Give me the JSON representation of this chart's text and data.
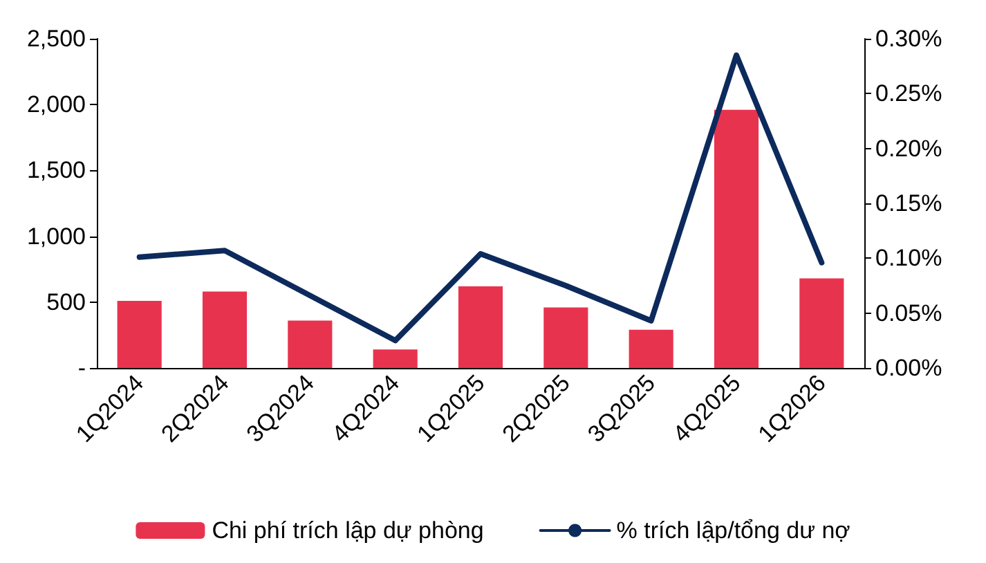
{
  "chart_data": {
    "type": "bar",
    "categories": [
      "1Q2024",
      "2Q2024",
      "3Q2024",
      "4Q2024",
      "1Q2025",
      "2Q2025",
      "3Q2025",
      "4Q2025",
      "1Q2026"
    ],
    "series": [
      {
        "name": "Chi phí trích lập dự phòng",
        "color": "#e8334f",
        "values": [
          510,
          580,
          360,
          140,
          620,
          460,
          290,
          1960,
          680
        ]
      },
      {
        "name": "% trích lập/tổng dư nợ",
        "type": "line",
        "axis": "y2",
        "color": "#0d2a5c",
        "values": [
          0.101,
          0.107,
          0.066,
          0.025,
          0.104,
          0.075,
          0.043,
          0.285,
          0.096
        ]
      }
    ],
    "ylim": [
      0,
      2500
    ],
    "yticks": [
      {
        "value": 0,
        "label": "-"
      },
      500,
      {
        "value": 1000,
        "label": "1,000"
      },
      {
        "value": 1500,
        "label": "1,500"
      },
      {
        "value": 2000,
        "label": "2,000"
      },
      {
        "value": 2500,
        "label": "2,500"
      }
    ],
    "y2lim": [
      0,
      0.3
    ],
    "y2ticks": [
      {
        "value": 0,
        "label": "0.00%"
      },
      {
        "value": 0.05,
        "label": "0.05%"
      },
      {
        "value": 0.1,
        "label": "0.10%"
      },
      {
        "value": 0.15,
        "label": "0.15%"
      },
      {
        "value": 0.2,
        "label": "0.20%"
      },
      {
        "value": 0.25,
        "label": "0.25%"
      },
      {
        "value": 0.3,
        "label": "0.30%"
      }
    ],
    "legend": "bottom",
    "marker": "none",
    "grid": false
  }
}
